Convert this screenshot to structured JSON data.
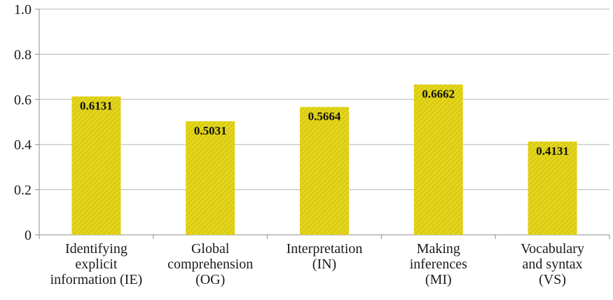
{
  "chart_data": {
    "type": "bar",
    "categories": [
      [
        "Identifying",
        "explicit",
        "information (IE)"
      ],
      [
        "Global",
        "comprehension",
        "(OG)"
      ],
      [
        "Interpretation",
        "(IN)"
      ],
      [
        "Making",
        "inferences",
        "(MI)"
      ],
      [
        "Vocabulary",
        "and syntax",
        "(VS)"
      ]
    ],
    "values": [
      0.6131,
      0.5031,
      0.5664,
      0.6662,
      0.4131
    ],
    "data_labels": [
      "0.6131",
      "0.5031",
      "0.5664",
      "0.6662",
      "0.4131"
    ],
    "ylim": [
      0,
      1.0
    ],
    "yticks": [
      0,
      0.2,
      0.4,
      0.6,
      0.8,
      1.0
    ],
    "ytick_labels": [
      "0",
      "0.2",
      "0.4",
      "0.6",
      "0.8",
      "1.0"
    ],
    "grid": true,
    "title": "",
    "xlabel": "",
    "ylabel": ""
  },
  "colors": {
    "bar_fill": "#e3d51b",
    "bar_hatch": "#c9b80f",
    "grid": "#b5b5b5",
    "axis": "#8c8c8c"
  }
}
